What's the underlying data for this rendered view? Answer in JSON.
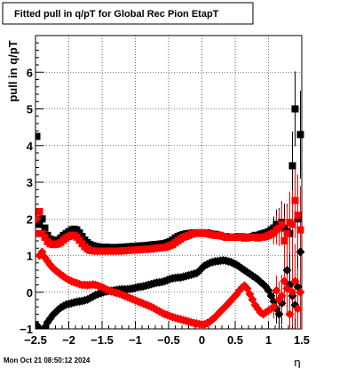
{
  "chart_data": {
    "type": "scatter",
    "title": "Fitted pull in q/pT for Global Rec Pion EtapT",
    "xlabel": "η",
    "ylabel": "pull in q/pT",
    "xlim": [
      -2.5,
      1.5
    ],
    "ylim": [
      -1,
      7
    ],
    "xticks": [
      -2.5,
      -2,
      -1.5,
      -1,
      -0.5,
      0,
      0.5,
      1,
      1.5
    ],
    "xtick_labels": [
      "−2.5",
      "−2",
      "−1.5",
      "−1",
      "−0.5",
      "0",
      "0.5",
      "1",
      "1.5"
    ],
    "yticks": [
      -1,
      0,
      1,
      2,
      3,
      4,
      5,
      6
    ],
    "ytick_labels": [
      "−1",
      "0",
      "1",
      "2",
      "3",
      "4",
      "5",
      "6"
    ],
    "grid": true,
    "series": [
      {
        "color": "#000000",
        "marker": "square",
        "x": [
          -2.48,
          -2.44,
          -2.4,
          -2.36,
          -2.32,
          -2.28,
          -2.24,
          -2.2,
          -2.16,
          -2.12,
          -2.08,
          -2.04,
          -2.0,
          -1.96,
          -1.92,
          -1.88,
          -1.84,
          -1.8,
          -1.76,
          -1.72,
          -1.68,
          -1.64,
          -1.6,
          -1.56,
          -1.52,
          -1.48,
          -1.44,
          -1.4,
          -1.36,
          -1.32,
          -1.28,
          -1.24,
          -1.2,
          -1.16,
          -1.12,
          -1.08,
          -1.04,
          -1.0,
          -0.96,
          -0.92,
          -0.88,
          -0.84,
          -0.8,
          -0.76,
          -0.72,
          -0.68,
          -0.64,
          -0.6,
          -0.56,
          -0.52,
          -0.48,
          -0.44,
          -0.4,
          -0.36,
          -0.32,
          -0.28,
          -0.24,
          -0.2,
          -0.16,
          -0.12,
          -0.08,
          -0.04,
          0.0,
          0.04,
          0.08,
          0.12,
          0.16,
          0.2,
          0.24,
          0.28,
          0.32,
          0.36,
          0.4,
          0.44,
          0.48,
          0.52,
          0.56,
          0.6,
          0.64,
          0.68,
          0.72,
          0.76,
          0.8,
          0.84,
          0.88,
          0.92,
          0.96,
          1.0,
          1.04,
          1.08,
          1.12,
          1.16,
          1.2,
          1.24,
          1.28,
          1.32,
          1.36,
          1.4,
          1.44,
          1.48
        ],
        "y": [
          4.25,
          1.85,
          2.0,
          1.75,
          1.55,
          1.45,
          1.42,
          1.4,
          1.42,
          1.48,
          1.55,
          1.6,
          1.65,
          1.7,
          1.72,
          1.7,
          1.62,
          1.52,
          1.42,
          1.35,
          1.3,
          1.27,
          1.25,
          1.24,
          1.23,
          1.23,
          1.23,
          1.22,
          1.22,
          1.22,
          1.22,
          1.22,
          1.23,
          1.23,
          1.24,
          1.24,
          1.25,
          1.25,
          1.26,
          1.26,
          1.27,
          1.27,
          1.28,
          1.29,
          1.3,
          1.3,
          1.31,
          1.32,
          1.33,
          1.35,
          1.38,
          1.42,
          1.48,
          1.52,
          1.55,
          1.57,
          1.59,
          1.6,
          1.61,
          1.62,
          1.62,
          1.62,
          1.62,
          1.62,
          1.62,
          1.6,
          1.58,
          1.58,
          1.56,
          1.54,
          1.52,
          1.52,
          1.5,
          1.5,
          1.5,
          1.5,
          1.52,
          1.5,
          1.48,
          1.5,
          1.5,
          1.52,
          1.55,
          1.55,
          1.58,
          1.6,
          1.62,
          1.65,
          1.7,
          1.75,
          1.85,
          1.8,
          1.9,
          1.75,
          1.65,
          1.6,
          3.45,
          5.0,
          2.0,
          4.3
        ]
      },
      {
        "color": "#000000",
        "marker": "diamond",
        "x": [
          -2.48,
          -2.44,
          -2.4,
          -2.36,
          -2.32,
          -2.28,
          -2.24,
          -2.2,
          -2.16,
          -2.12,
          -2.08,
          -2.04,
          -2.0,
          -1.96,
          -1.92,
          -1.88,
          -1.84,
          -1.8,
          -1.76,
          -1.72,
          -1.68,
          -1.64,
          -1.6,
          -1.56,
          -1.52,
          -1.48,
          -1.44,
          -1.4,
          -1.36,
          -1.32,
          -1.28,
          -1.24,
          -1.2,
          -1.16,
          -1.12,
          -1.08,
          -1.04,
          -1.0,
          -0.96,
          -0.92,
          -0.88,
          -0.84,
          -0.8,
          -0.76,
          -0.72,
          -0.68,
          -0.64,
          -0.6,
          -0.56,
          -0.52,
          -0.48,
          -0.44,
          -0.4,
          -0.36,
          -0.32,
          -0.28,
          -0.24,
          -0.2,
          -0.16,
          -0.12,
          -0.08,
          -0.04,
          0.0,
          0.04,
          0.08,
          0.12,
          0.16,
          0.2,
          0.24,
          0.28,
          0.32,
          0.36,
          0.4,
          0.44,
          0.48,
          0.52,
          0.56,
          0.6,
          0.64,
          0.68,
          0.72,
          0.76,
          0.8,
          0.84,
          0.88,
          0.92,
          0.96,
          1.0,
          1.04,
          1.08,
          1.12,
          1.16,
          1.2,
          1.24,
          1.28,
          1.32,
          1.36,
          1.4,
          1.44,
          1.48
        ],
        "y": [
          -0.9,
          -1.0,
          -1.05,
          -0.95,
          -0.82,
          -0.72,
          -0.62,
          -0.55,
          -0.48,
          -0.42,
          -0.38,
          -0.34,
          -0.32,
          -0.3,
          -0.28,
          -0.26,
          -0.25,
          -0.24,
          -0.22,
          -0.2,
          -0.16,
          -0.12,
          -0.08,
          -0.05,
          -0.02,
          0.0,
          0.02,
          0.03,
          0.04,
          0.05,
          0.06,
          0.07,
          0.08,
          0.08,
          0.08,
          0.09,
          0.1,
          0.12,
          0.14,
          0.15,
          0.16,
          0.18,
          0.2,
          0.22,
          0.24,
          0.26,
          0.27,
          0.28,
          0.3,
          0.33,
          0.36,
          0.38,
          0.39,
          0.4,
          0.4,
          0.42,
          0.44,
          0.46,
          0.48,
          0.5,
          0.52,
          0.58,
          0.66,
          0.72,
          0.76,
          0.8,
          0.82,
          0.84,
          0.85,
          0.86,
          0.87,
          0.86,
          0.84,
          0.82,
          0.78,
          0.75,
          0.7,
          0.65,
          0.6,
          0.55,
          0.5,
          0.45,
          0.4,
          0.35,
          0.28,
          0.22,
          0.15,
          0.05,
          -0.1,
          -0.25,
          -0.45,
          -0.6,
          -0.3,
          0.3,
          0.6,
          0.2,
          -0.1,
          -0.35,
          0.15,
          1.1
        ]
      },
      {
        "color": "#ff0000",
        "marker": "square",
        "x": [
          -2.48,
          -2.44,
          -2.4,
          -2.36,
          -2.32,
          -2.28,
          -2.24,
          -2.2,
          -2.16,
          -2.12,
          -2.08,
          -2.04,
          -2.0,
          -1.96,
          -1.92,
          -1.88,
          -1.84,
          -1.8,
          -1.76,
          -1.72,
          -1.68,
          -1.64,
          -1.6,
          -1.56,
          -1.52,
          -1.48,
          -1.44,
          -1.4,
          -1.36,
          -1.32,
          -1.28,
          -1.24,
          -1.2,
          -1.16,
          -1.12,
          -1.08,
          -1.04,
          -1.0,
          -0.96,
          -0.92,
          -0.88,
          -0.84,
          -0.8,
          -0.76,
          -0.72,
          -0.68,
          -0.64,
          -0.6,
          -0.56,
          -0.52,
          -0.48,
          -0.44,
          -0.4,
          -0.36,
          -0.32,
          -0.28,
          -0.24,
          -0.2,
          -0.16,
          -0.12,
          -0.08,
          -0.04,
          0.0,
          0.04,
          0.08,
          0.12,
          0.16,
          0.2,
          0.24,
          0.28,
          0.32,
          0.36,
          0.4,
          0.44,
          0.48,
          0.52,
          0.56,
          0.6,
          0.64,
          0.68,
          0.72,
          0.76,
          0.8,
          0.84,
          0.88,
          0.92,
          0.96,
          1.0,
          1.04,
          1.08,
          1.12,
          1.16,
          1.2,
          1.24,
          1.28,
          1.32,
          1.36,
          1.4,
          1.44,
          1.48
        ],
        "y": [
          1.6,
          2.2,
          1.6,
          1.5,
          1.38,
          1.32,
          1.3,
          1.3,
          1.32,
          1.36,
          1.42,
          1.48,
          1.52,
          1.55,
          1.55,
          1.5,
          1.42,
          1.32,
          1.24,
          1.18,
          1.14,
          1.13,
          1.12,
          1.12,
          1.12,
          1.12,
          1.12,
          1.12,
          1.12,
          1.12,
          1.12,
          1.12,
          1.13,
          1.13,
          1.14,
          1.14,
          1.15,
          1.15,
          1.16,
          1.16,
          1.17,
          1.17,
          1.18,
          1.18,
          1.19,
          1.2,
          1.21,
          1.22,
          1.22,
          1.24,
          1.27,
          1.3,
          1.35,
          1.4,
          1.45,
          1.5,
          1.52,
          1.55,
          1.58,
          1.6,
          1.62,
          1.62,
          1.6,
          1.62,
          1.6,
          1.58,
          1.56,
          1.55,
          1.55,
          1.55,
          1.52,
          1.5,
          1.5,
          1.5,
          1.5,
          1.5,
          1.5,
          1.52,
          1.5,
          1.48,
          1.5,
          1.5,
          1.5,
          1.48,
          1.5,
          1.5,
          1.52,
          1.55,
          1.58,
          1.62,
          1.7,
          1.75,
          1.85,
          1.4,
          1.6,
          1.9,
          1.85,
          2.5,
          2.1,
          1.7
        ]
      },
      {
        "color": "#ff0000",
        "marker": "diamond",
        "x": [
          -2.48,
          -2.44,
          -2.4,
          -2.36,
          -2.32,
          -2.28,
          -2.24,
          -2.2,
          -2.16,
          -2.12,
          -2.08,
          -2.04,
          -2.0,
          -1.96,
          -1.92,
          -1.88,
          -1.84,
          -1.8,
          -1.76,
          -1.72,
          -1.68,
          -1.64,
          -1.6,
          -1.56,
          -1.52,
          -1.48,
          -1.44,
          -1.4,
          -1.36,
          -1.32,
          -1.28,
          -1.24,
          -1.2,
          -1.16,
          -1.12,
          -1.08,
          -1.04,
          -1.0,
          -0.96,
          -0.92,
          -0.88,
          -0.84,
          -0.8,
          -0.76,
          -0.72,
          -0.68,
          -0.64,
          -0.6,
          -0.56,
          -0.52,
          -0.48,
          -0.44,
          -0.4,
          -0.36,
          -0.32,
          -0.28,
          -0.24,
          -0.2,
          -0.16,
          -0.12,
          -0.08,
          -0.04,
          0.0,
          0.04,
          0.08,
          0.12,
          0.16,
          0.2,
          0.24,
          0.28,
          0.32,
          0.36,
          0.4,
          0.44,
          0.48,
          0.52,
          0.56,
          0.6,
          0.64,
          0.68,
          0.72,
          0.76,
          0.8,
          0.84,
          0.88,
          0.92,
          0.96,
          1.0,
          1.04,
          1.08,
          1.12,
          1.16,
          1.2,
          1.24,
          1.28,
          1.32,
          1.36,
          1.4,
          1.44,
          1.48
        ],
        "y": [
          2.0,
          1.0,
          1.1,
          0.95,
          0.85,
          0.75,
          0.66,
          0.6,
          0.54,
          0.48,
          0.43,
          0.38,
          0.34,
          0.3,
          0.27,
          0.25,
          0.22,
          0.2,
          0.2,
          0.19,
          0.2,
          0.21,
          0.2,
          0.18,
          0.15,
          0.12,
          0.08,
          0.05,
          0.02,
          0.0,
          -0.02,
          -0.04,
          -0.07,
          -0.1,
          -0.13,
          -0.16,
          -0.19,
          -0.22,
          -0.25,
          -0.28,
          -0.31,
          -0.34,
          -0.37,
          -0.4,
          -0.44,
          -0.48,
          -0.52,
          -0.56,
          -0.6,
          -0.62,
          -0.65,
          -0.68,
          -0.7,
          -0.72,
          -0.74,
          -0.76,
          -0.78,
          -0.8,
          -0.82,
          -0.84,
          -0.85,
          -0.87,
          -0.88,
          -0.88,
          -0.84,
          -0.8,
          -0.74,
          -0.68,
          -0.6,
          -0.52,
          -0.45,
          -0.38,
          -0.3,
          -0.22,
          -0.14,
          -0.06,
          0.04,
          0.12,
          0.18,
          0.1,
          -0.05,
          -0.2,
          -0.35,
          -0.45,
          -0.55,
          -0.6,
          -0.55,
          -0.5,
          -0.45,
          -0.4,
          0.05,
          -0.2,
          -0.1,
          0.3,
          0.1,
          -0.6,
          0.0,
          0.3,
          -0.45,
          0.0
        ]
      }
    ]
  },
  "title_text": "Fitted pull in q/pT for Global Rec Pion EtapT",
  "ylabel_text": "pull in q/pT",
  "xlabel_text": "η",
  "timestamp": "Mon Oct 21 08:50:12 2024"
}
